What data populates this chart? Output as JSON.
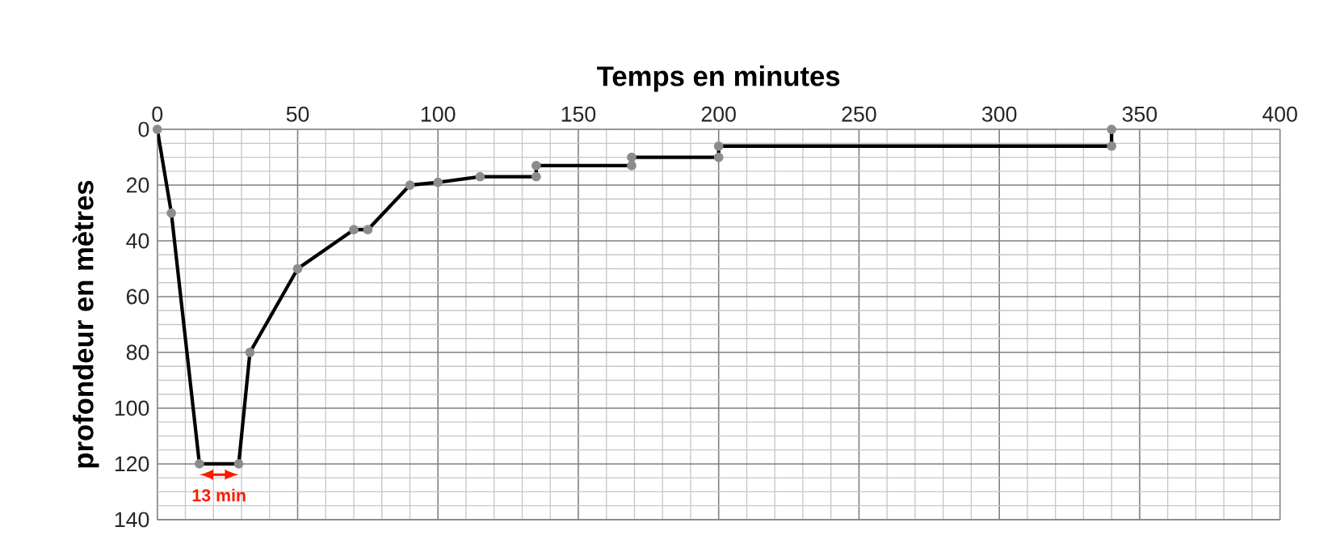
{
  "chart_data": {
    "type": "line",
    "xlabel": "Temps en minutes",
    "ylabel": "profondeur  en mètres",
    "x": [
      0,
      5,
      15,
      29,
      33,
      50,
      70,
      75,
      90,
      100,
      115,
      135,
      135,
      169,
      169,
      200,
      200,
      340,
      340
    ],
    "values": [
      0,
      30,
      120,
      120,
      80,
      50,
      36,
      36,
      20,
      19,
      17,
      17,
      13,
      13,
      10,
      10,
      6,
      6,
      0
    ],
    "color": "#000000",
    "marker": "circle",
    "line_style": "solid",
    "xlim": [
      0,
      400
    ],
    "xticks": [
      0,
      50,
      100,
      150,
      200,
      250,
      300,
      350,
      400
    ],
    "ylim": [
      140,
      0
    ],
    "yticks": [
      0,
      20,
      40,
      60,
      80,
      100,
      120,
      140
    ],
    "grid": true,
    "annotations": [
      {
        "text": "13 min",
        "x": 22,
        "y": 120
      }
    ]
  }
}
